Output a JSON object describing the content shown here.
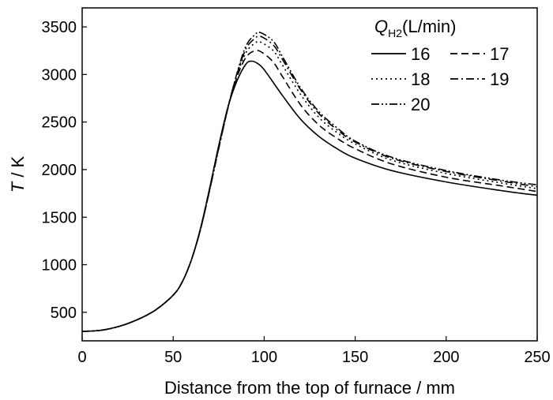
{
  "chart_data": {
    "type": "line",
    "xlabel": "Distance from the top of furnace / mm",
    "ylabel_italic": "T",
    "ylabel_rest": " / K",
    "xlim": [
      0,
      250
    ],
    "ylim": [
      200,
      3700
    ],
    "xticks": [
      0,
      50,
      100,
      150,
      200,
      250
    ],
    "yticks": [
      500,
      1000,
      1500,
      2000,
      2500,
      3000,
      3500
    ],
    "grid": false,
    "legend_placement": "top-right",
    "legend_title": {
      "symbol": "Q",
      "subscript": "H2",
      "unit": "(L/min)"
    },
    "series": [
      {
        "name": "16",
        "dash": "solid",
        "points": [
          [
            0,
            300
          ],
          [
            10,
            310
          ],
          [
            20,
            350
          ],
          [
            30,
            420
          ],
          [
            40,
            520
          ],
          [
            50,
            680
          ],
          [
            55,
            820
          ],
          [
            60,
            1050
          ],
          [
            65,
            1380
          ],
          [
            70,
            1800
          ],
          [
            75,
            2250
          ],
          [
            80,
            2650
          ],
          [
            85,
            2930
          ],
          [
            90,
            3110
          ],
          [
            93,
            3140
          ],
          [
            96,
            3120
          ],
          [
            100,
            3050
          ],
          [
            110,
            2780
          ],
          [
            120,
            2530
          ],
          [
            130,
            2350
          ],
          [
            140,
            2220
          ],
          [
            150,
            2120
          ],
          [
            170,
            1990
          ],
          [
            200,
            1870
          ],
          [
            230,
            1780
          ],
          [
            250,
            1730
          ]
        ]
      },
      {
        "name": "17",
        "dash": "dashed",
        "points": [
          [
            0,
            300
          ],
          [
            10,
            310
          ],
          [
            20,
            350
          ],
          [
            30,
            420
          ],
          [
            40,
            520
          ],
          [
            50,
            680
          ],
          [
            55,
            820
          ],
          [
            60,
            1050
          ],
          [
            65,
            1380
          ],
          [
            70,
            1800
          ],
          [
            75,
            2240
          ],
          [
            80,
            2650
          ],
          [
            85,
            2970
          ],
          [
            90,
            3180
          ],
          [
            95,
            3250
          ],
          [
            99,
            3230
          ],
          [
            105,
            3130
          ],
          [
            110,
            2980
          ],
          [
            120,
            2680
          ],
          [
            130,
            2470
          ],
          [
            140,
            2330
          ],
          [
            150,
            2220
          ],
          [
            170,
            2060
          ],
          [
            200,
            1920
          ],
          [
            230,
            1830
          ],
          [
            250,
            1770
          ]
        ]
      },
      {
        "name": "18",
        "dash": "dotted",
        "points": [
          [
            0,
            300
          ],
          [
            10,
            310
          ],
          [
            20,
            350
          ],
          [
            30,
            420
          ],
          [
            40,
            520
          ],
          [
            50,
            680
          ],
          [
            55,
            820
          ],
          [
            60,
            1050
          ],
          [
            65,
            1370
          ],
          [
            70,
            1790
          ],
          [
            75,
            2230
          ],
          [
            80,
            2650
          ],
          [
            85,
            2990
          ],
          [
            90,
            3230
          ],
          [
            95,
            3330
          ],
          [
            98,
            3340
          ],
          [
            105,
            3250
          ],
          [
            110,
            3100
          ],
          [
            120,
            2790
          ],
          [
            130,
            2550
          ],
          [
            140,
            2390
          ],
          [
            150,
            2270
          ],
          [
            170,
            2100
          ],
          [
            200,
            1960
          ],
          [
            230,
            1860
          ],
          [
            250,
            1800
          ]
        ]
      },
      {
        "name": "19",
        "dash": "dashdot",
        "points": [
          [
            0,
            300
          ],
          [
            10,
            310
          ],
          [
            20,
            350
          ],
          [
            30,
            420
          ],
          [
            40,
            520
          ],
          [
            50,
            680
          ],
          [
            55,
            820
          ],
          [
            60,
            1050
          ],
          [
            65,
            1370
          ],
          [
            70,
            1780
          ],
          [
            75,
            2220
          ],
          [
            80,
            2640
          ],
          [
            85,
            3000
          ],
          [
            90,
            3270
          ],
          [
            95,
            3380
          ],
          [
            98,
            3400
          ],
          [
            105,
            3310
          ],
          [
            110,
            3160
          ],
          [
            120,
            2840
          ],
          [
            130,
            2590
          ],
          [
            140,
            2420
          ],
          [
            150,
            2290
          ],
          [
            170,
            2120
          ],
          [
            200,
            1980
          ],
          [
            230,
            1880
          ],
          [
            250,
            1820
          ]
        ]
      },
      {
        "name": "20",
        "dash": "dashdotdot",
        "points": [
          [
            0,
            300
          ],
          [
            10,
            310
          ],
          [
            20,
            350
          ],
          [
            30,
            420
          ],
          [
            40,
            520
          ],
          [
            50,
            680
          ],
          [
            55,
            820
          ],
          [
            60,
            1050
          ],
          [
            65,
            1370
          ],
          [
            70,
            1780
          ],
          [
            75,
            2220
          ],
          [
            80,
            2640
          ],
          [
            85,
            3010
          ],
          [
            90,
            3300
          ],
          [
            95,
            3420
          ],
          [
            98,
            3440
          ],
          [
            105,
            3350
          ],
          [
            110,
            3190
          ],
          [
            120,
            2860
          ],
          [
            130,
            2610
          ],
          [
            140,
            2440
          ],
          [
            150,
            2300
          ],
          [
            170,
            2130
          ],
          [
            200,
            1990
          ],
          [
            230,
            1890
          ],
          [
            250,
            1840
          ]
        ]
      }
    ]
  }
}
